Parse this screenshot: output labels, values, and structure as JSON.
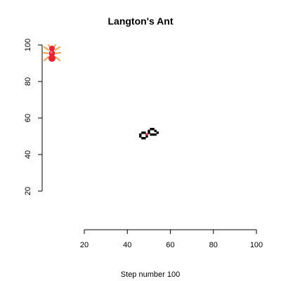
{
  "title": "Langton's Ant",
  "xlabel": "Step number 100",
  "ant_icon": "ant-icon",
  "colors": {
    "ant": "#ee2233",
    "ant_outline": "#f5a040",
    "cell": "#000000",
    "ant_cell": "#dd2222"
  },
  "chart_data": {
    "type": "heatmap",
    "title": "Langton's Ant",
    "xlabel": "Step number 100",
    "ylabel": "",
    "xlim": [
      20,
      100
    ],
    "ylim": [
      20,
      100
    ],
    "xticks": [
      20,
      40,
      60,
      80,
      100
    ],
    "yticks": [
      20,
      40,
      60,
      80,
      100
    ],
    "grid": false,
    "black_cells": [
      [
        47,
        52
      ],
      [
        48,
        52
      ],
      [
        46,
        51
      ],
      [
        49,
        51
      ],
      [
        46,
        50
      ],
      [
        49,
        50
      ],
      [
        47,
        49
      ],
      [
        48,
        49
      ],
      [
        51,
        54
      ],
      [
        52,
        54
      ],
      [
        50,
        53
      ],
      [
        53,
        53
      ],
      [
        50,
        52
      ],
      [
        54,
        52
      ],
      [
        51,
        51
      ],
      [
        52,
        51
      ],
      [
        53,
        51
      ]
    ],
    "ant_position": [
      49,
      51
    ]
  }
}
